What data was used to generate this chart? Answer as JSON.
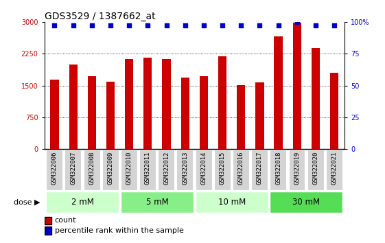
{
  "title": "GDS3529 / 1387662_at",
  "samples": [
    "GSM322006",
    "GSM322007",
    "GSM322008",
    "GSM322009",
    "GSM322010",
    "GSM322011",
    "GSM322012",
    "GSM322013",
    "GSM322014",
    "GSM322015",
    "GSM322016",
    "GSM322017",
    "GSM322018",
    "GSM322019",
    "GSM322020",
    "GSM322021"
  ],
  "counts": [
    1640,
    2000,
    1720,
    1590,
    2130,
    2160,
    2130,
    1680,
    1720,
    2190,
    1510,
    1580,
    2650,
    2980,
    2380,
    1800
  ],
  "percentiles": [
    97,
    97,
    97,
    97,
    97,
    97,
    97,
    97,
    97,
    97,
    97,
    97,
    97,
    100,
    97,
    97
  ],
  "bar_color": "#cc0000",
  "dot_color": "#0000cc",
  "ylim_left": [
    0,
    3000
  ],
  "ylim_right": [
    0,
    100
  ],
  "yticks_left": [
    0,
    750,
    1500,
    2250,
    3000
  ],
  "yticks_right": [
    0,
    25,
    50,
    75,
    100
  ],
  "dose_groups": [
    {
      "label": "2 mM",
      "indices": [
        0,
        1,
        2,
        3
      ],
      "color": "#ccffcc"
    },
    {
      "label": "5 mM",
      "indices": [
        4,
        5,
        6,
        7
      ],
      "color": "#88ee88"
    },
    {
      "label": "10 mM",
      "indices": [
        8,
        9,
        10,
        11
      ],
      "color": "#ccffcc"
    },
    {
      "label": "30 mM",
      "indices": [
        12,
        13,
        14,
        15
      ],
      "color": "#55dd55"
    }
  ],
  "xtick_bg": "#d0d0d0",
  "plot_bg_color": "#ffffff",
  "title_fontsize": 10,
  "tick_fontsize": 7,
  "bar_fontsize": 6.5,
  "legend_fontsize": 8
}
